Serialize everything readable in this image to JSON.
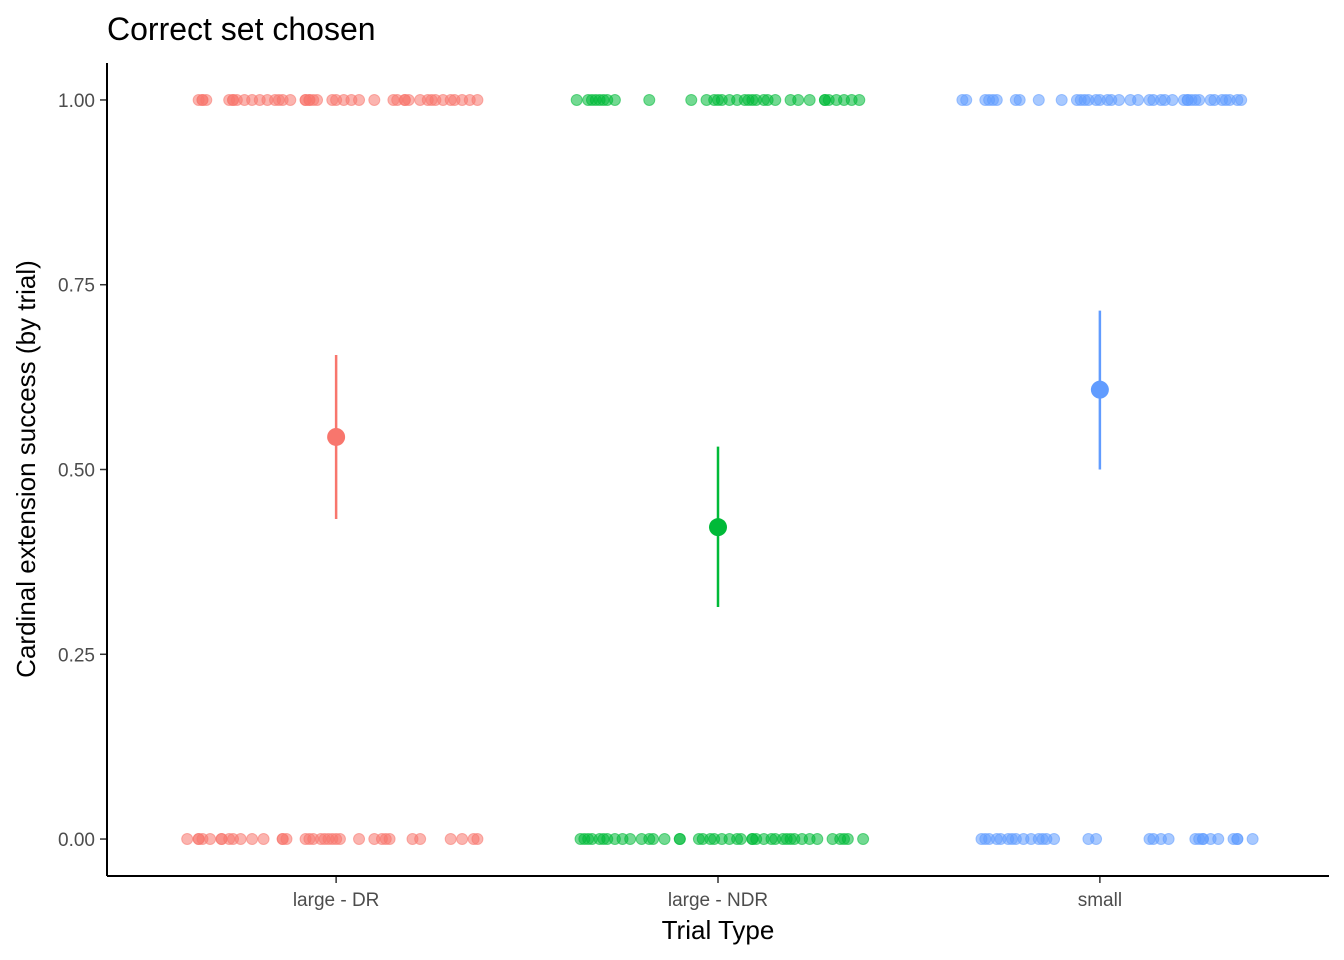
{
  "chart_data": {
    "type": "scatter",
    "title": "Correct set chosen",
    "xlabel": "Trial Type",
    "ylabel": "Cardinal extension success (by trial)",
    "categories": [
      "large - DR",
      "large - NDR",
      "small"
    ],
    "ylim": [
      -0.05,
      1.05
    ],
    "yticks": [
      0.0,
      0.25,
      0.5,
      0.75,
      1.0
    ],
    "ytick_labels": [
      "0.00",
      "0.25",
      "0.50",
      "0.75",
      "1.00"
    ],
    "grid": false,
    "legend": "none",
    "series": [
      {
        "category": "large - DR",
        "color": "#F8766D",
        "mean": 0.544,
        "ci": [
          0.433,
          0.655
        ],
        "jitter_points": {
          "1": [
            -0.36,
            -0.35,
            -0.35,
            -0.34,
            -0.28,
            -0.27,
            -0.27,
            -0.26,
            -0.24,
            -0.22,
            -0.2,
            -0.18,
            -0.16,
            -0.15,
            -0.14,
            -0.12,
            -0.08,
            -0.08,
            -0.07,
            -0.07,
            -0.06,
            -0.05,
            -0.01,
            0.0,
            0.02,
            0.04,
            0.06,
            0.1,
            0.15,
            0.16,
            0.18,
            0.18,
            0.19,
            0.22,
            0.24,
            0.25,
            0.26,
            0.28,
            0.3,
            0.31,
            0.33,
            0.35,
            0.37
          ],
          "0": [
            -0.39,
            -0.36,
            -0.36,
            -0.35,
            -0.33,
            -0.3,
            -0.3,
            -0.28,
            -0.27,
            -0.25,
            -0.22,
            -0.19,
            -0.14,
            -0.14,
            -0.13,
            -0.08,
            -0.07,
            -0.06,
            -0.04,
            -0.03,
            -0.02,
            -0.01,
            0.0,
            0.01,
            0.06,
            0.1,
            0.12,
            0.13,
            0.14,
            0.2,
            0.22,
            0.3,
            0.33,
            0.36,
            0.37
          ]
        }
      },
      {
        "category": "large - NDR",
        "color": "#00BA38",
        "mean": 0.422,
        "ci": [
          0.314,
          0.531
        ],
        "jitter_points": {
          "1": [
            -0.37,
            -0.34,
            -0.33,
            -0.32,
            -0.31,
            -0.3,
            -0.29,
            -0.27,
            -0.18,
            -0.07,
            -0.03,
            -0.01,
            0.0,
            0.01,
            0.03,
            0.05,
            0.07,
            0.08,
            0.09,
            0.1,
            0.12,
            0.13,
            0.15,
            0.19,
            0.21,
            0.24,
            0.28,
            0.28,
            0.29,
            0.31,
            0.33,
            0.35,
            0.37
          ],
          "0": [
            -0.36,
            -0.35,
            -0.34,
            -0.33,
            -0.31,
            -0.3,
            -0.29,
            -0.27,
            -0.25,
            -0.23,
            -0.2,
            -0.18,
            -0.17,
            -0.14,
            -0.1,
            -0.1,
            -0.05,
            -0.04,
            -0.02,
            -0.01,
            0.01,
            0.03,
            0.05,
            0.06,
            0.09,
            0.09,
            0.1,
            0.12,
            0.14,
            0.15,
            0.17,
            0.18,
            0.19,
            0.2,
            0.22,
            0.24,
            0.26,
            0.3,
            0.32,
            0.33,
            0.34,
            0.38
          ]
        }
      },
      {
        "category": "small",
        "color": "#619CFF",
        "mean": 0.608,
        "ci": [
          0.5,
          0.715
        ],
        "jitter_points": {
          "1": [
            -0.36,
            -0.35,
            -0.3,
            -0.29,
            -0.28,
            -0.27,
            -0.22,
            -0.21,
            -0.16,
            -0.1,
            -0.06,
            -0.05,
            -0.04,
            -0.03,
            -0.01,
            0.0,
            0.02,
            0.03,
            0.05,
            0.08,
            0.1,
            0.13,
            0.14,
            0.16,
            0.17,
            0.19,
            0.22,
            0.23,
            0.23,
            0.24,
            0.25,
            0.26,
            0.29,
            0.3,
            0.32,
            0.33,
            0.34,
            0.36,
            0.37
          ],
          "0": [
            -0.31,
            -0.3,
            -0.29,
            -0.27,
            -0.26,
            -0.24,
            -0.23,
            -0.22,
            -0.2,
            -0.18,
            -0.16,
            -0.15,
            -0.14,
            -0.12,
            -0.03,
            -0.01,
            0.13,
            0.14,
            0.16,
            0.18,
            0.25,
            0.26,
            0.27,
            0.29,
            0.31,
            0.36,
            0.35,
            0.27,
            0.36,
            0.4
          ]
        }
      }
    ]
  }
}
